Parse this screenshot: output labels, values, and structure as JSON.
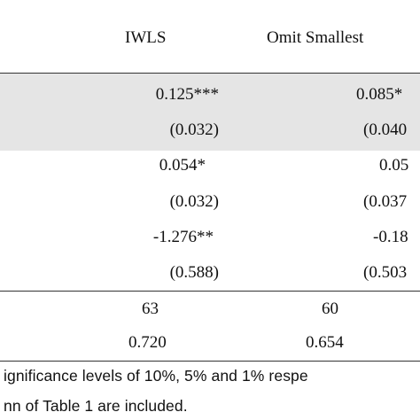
{
  "table": {
    "columns": [
      "IWLS",
      "Omit Smallest"
    ],
    "rows": [
      {
        "col1": "0.125***",
        "col2": "0.085*"
      },
      {
        "col1": "(0.032)",
        "col2": "(0.040"
      },
      {
        "col1": "0.054*",
        "col2": "0.05"
      },
      {
        "col1": "(0.032)",
        "col2": "(0.037"
      },
      {
        "col1": "-1.276**",
        "col2": "-0.18"
      },
      {
        "col1": "(0.588)",
        "col2": "(0.503"
      }
    ],
    "stats": [
      {
        "col1": "63",
        "col2": "60"
      },
      {
        "col1": "0.720",
        "col2": "0.654"
      }
    ]
  },
  "notes": [
    "ignificance levels of 10%, 5% and 1% respe",
    "nn of Table 1 are included."
  ]
}
